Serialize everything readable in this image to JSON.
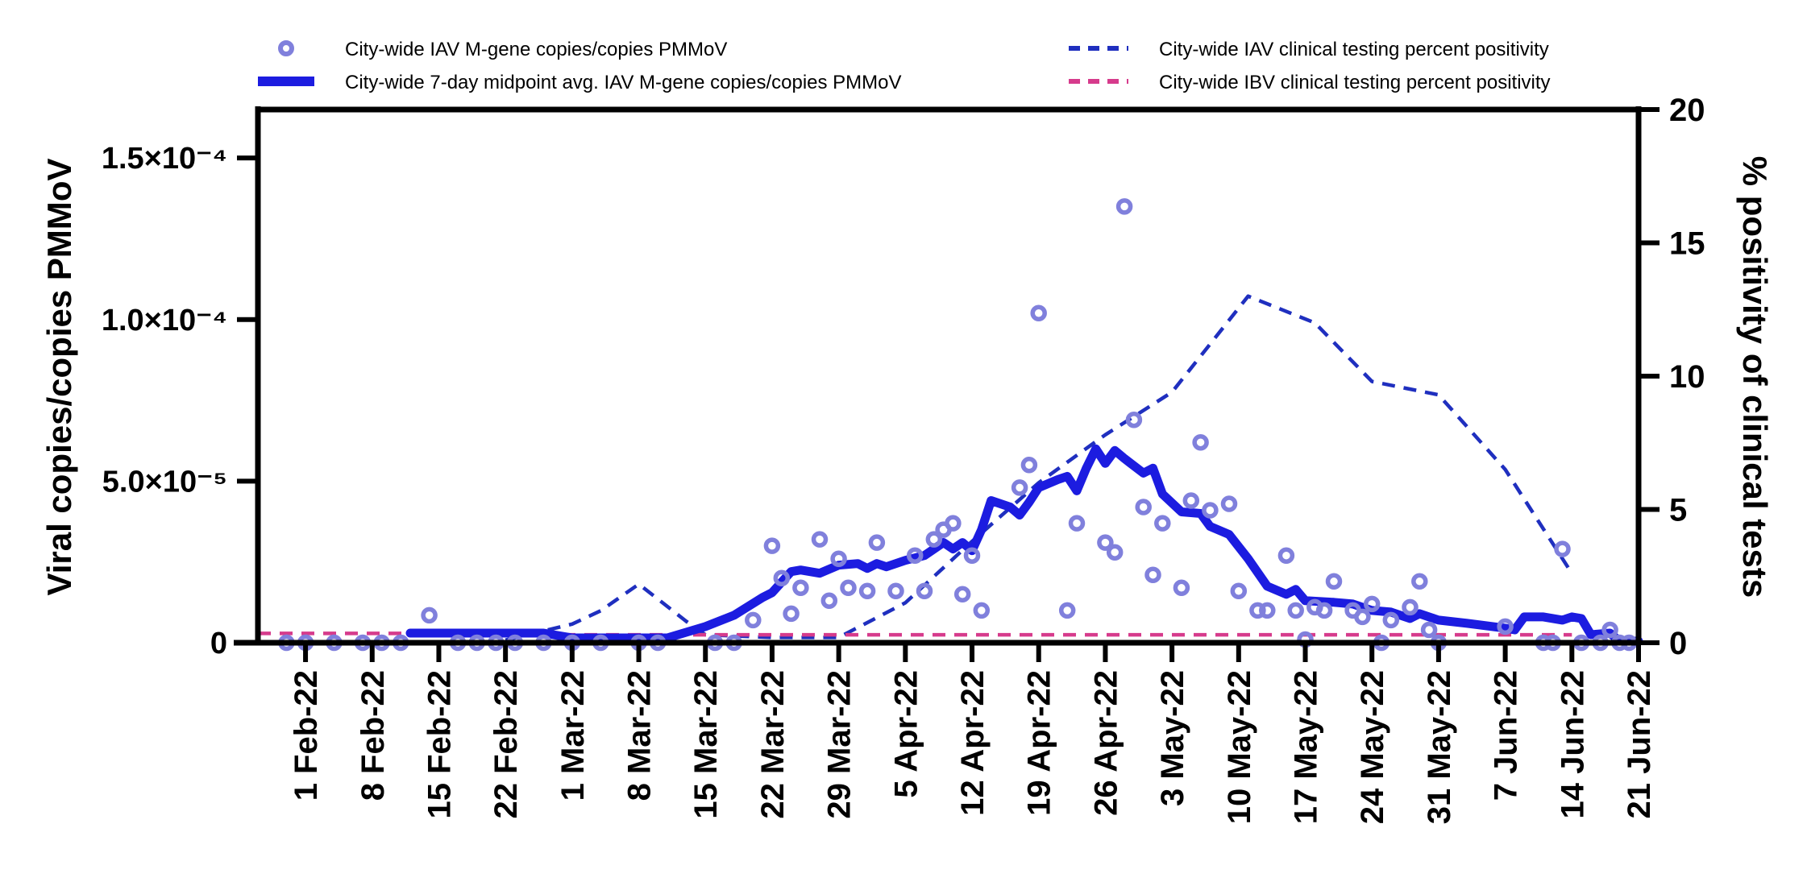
{
  "chart_data": {
    "type": "line",
    "y_left": {
      "label": "Viral copies/copies PMMoV",
      "range": [
        0,
        0.000165
      ],
      "ticks": [
        {
          "value": 0,
          "label": "0"
        },
        {
          "value": 5e-05,
          "label": "5.0×10⁻⁵"
        },
        {
          "value": 0.0001,
          "label": "1.0×10⁻⁴"
        },
        {
          "value": 0.00015,
          "label": "1.5×10⁻⁴"
        }
      ]
    },
    "y_right": {
      "label": "% positivity of clinical tests",
      "range": [
        0,
        20
      ],
      "ticks": [
        0,
        5,
        10,
        15,
        20
      ]
    },
    "x_axis": {
      "range": [
        "2022-01-27",
        "2022-06-21"
      ],
      "ticks": [
        {
          "date": "2022-02-01",
          "label": "1 Feb-22"
        },
        {
          "date": "2022-02-08",
          "label": "8 Feb-22"
        },
        {
          "date": "2022-02-15",
          "label": "15 Feb-22"
        },
        {
          "date": "2022-02-22",
          "label": "22 Feb-22"
        },
        {
          "date": "2022-03-01",
          "label": "1 Mar-22"
        },
        {
          "date": "2022-03-08",
          "label": "8 Mar-22"
        },
        {
          "date": "2022-03-15",
          "label": "15 Mar-22"
        },
        {
          "date": "2022-03-22",
          "label": "22 Mar-22"
        },
        {
          "date": "2022-03-29",
          "label": "29 Mar-22"
        },
        {
          "date": "2022-04-05",
          "label": "5 Apr-22"
        },
        {
          "date": "2022-04-12",
          "label": "12 Apr-22"
        },
        {
          "date": "2022-04-19",
          "label": "19 Apr-22"
        },
        {
          "date": "2022-04-26",
          "label": "26 Apr-22"
        },
        {
          "date": "2022-05-03",
          "label": "3 May-22"
        },
        {
          "date": "2022-05-10",
          "label": "10 May-22"
        },
        {
          "date": "2022-05-17",
          "label": "17 May-22"
        },
        {
          "date": "2022-05-24",
          "label": "24 May-22"
        },
        {
          "date": "2022-05-31",
          "label": "31 May-22"
        },
        {
          "date": "2022-06-07",
          "label": "7 Jun-22"
        },
        {
          "date": "2022-06-14",
          "label": "14 Jun-22"
        },
        {
          "date": "2022-06-21",
          "label": "21 Jun-22"
        }
      ]
    },
    "legend": [
      {
        "label": "City-wide IAV M-gene copies/copies PMMoV",
        "marker": "circle",
        "color": "#8080dc"
      },
      {
        "label": "City-wide 7-day midpoint avg. IAV M-gene copies/copies PMMoV",
        "marker": "thick-line",
        "color": "#1c1ce0"
      },
      {
        "label": "City-wide IAV clinical testing percent positivity",
        "marker": "dashed-line",
        "color": "#1f2fbf"
      },
      {
        "label": "City-wide IBV clinical testing percent positivity",
        "marker": "dashed-line",
        "color": "#d63b8c"
      }
    ],
    "series": [
      {
        "name": "City-wide IAV M-gene copies/copies PMMoV",
        "axis": "left",
        "style": "scatter",
        "color": "#8080dc",
        "points": [
          [
            "2022-01-30",
            0
          ],
          [
            "2022-02-01",
            0
          ],
          [
            "2022-02-04",
            0
          ],
          [
            "2022-02-07",
            0
          ],
          [
            "2022-02-09",
            0
          ],
          [
            "2022-02-11",
            0
          ],
          [
            "2022-02-14",
            8.5e-06
          ],
          [
            "2022-02-17",
            0
          ],
          [
            "2022-02-19",
            0
          ],
          [
            "2022-02-21",
            0
          ],
          [
            "2022-02-23",
            0
          ],
          [
            "2022-02-26",
            0
          ],
          [
            "2022-03-01",
            0
          ],
          [
            "2022-03-04",
            0
          ],
          [
            "2022-03-08",
            0
          ],
          [
            "2022-03-10",
            0
          ],
          [
            "2022-03-16",
            0
          ],
          [
            "2022-03-18",
            0
          ],
          [
            "2022-03-20",
            7e-06
          ],
          [
            "2022-03-22",
            3e-05
          ],
          [
            "2022-03-23",
            2e-05
          ],
          [
            "2022-03-24",
            9e-06
          ],
          [
            "2022-03-25",
            1.7e-05
          ],
          [
            "2022-03-27",
            3.2e-05
          ],
          [
            "2022-03-28",
            1.3e-05
          ],
          [
            "2022-03-29",
            2.6e-05
          ],
          [
            "2022-03-30",
            1.7e-05
          ],
          [
            "2022-04-01",
            1.6e-05
          ],
          [
            "2022-04-02",
            3.1e-05
          ],
          [
            "2022-04-04",
            1.6e-05
          ],
          [
            "2022-04-06",
            2.7e-05
          ],
          [
            "2022-04-07",
            1.6e-05
          ],
          [
            "2022-04-08",
            3.2e-05
          ],
          [
            "2022-04-09",
            3.5e-05
          ],
          [
            "2022-04-10",
            3.7e-05
          ],
          [
            "2022-04-11",
            1.5e-05
          ],
          [
            "2022-04-12",
            2.7e-05
          ],
          [
            "2022-04-13",
            1e-05
          ],
          [
            "2022-04-17",
            4.8e-05
          ],
          [
            "2022-04-18",
            5.5e-05
          ],
          [
            "2022-04-19",
            0.000102
          ],
          [
            "2022-04-22",
            1e-05
          ],
          [
            "2022-04-23",
            3.7e-05
          ],
          [
            "2022-04-26",
            3.1e-05
          ],
          [
            "2022-04-27",
            2.8e-05
          ],
          [
            "2022-04-28",
            0.000135
          ],
          [
            "2022-04-29",
            6.9e-05
          ],
          [
            "2022-04-30",
            4.2e-05
          ],
          [
            "2022-05-01",
            2.1e-05
          ],
          [
            "2022-05-02",
            3.7e-05
          ],
          [
            "2022-05-04",
            1.7e-05
          ],
          [
            "2022-05-05",
            4.4e-05
          ],
          [
            "2022-05-06",
            6.2e-05
          ],
          [
            "2022-05-07",
            4.1e-05
          ],
          [
            "2022-05-09",
            4.3e-05
          ],
          [
            "2022-05-10",
            1.6e-05
          ],
          [
            "2022-05-12",
            1e-05
          ],
          [
            "2022-05-13",
            1e-05
          ],
          [
            "2022-05-15",
            2.7e-05
          ],
          [
            "2022-05-16",
            1e-05
          ],
          [
            "2022-05-17",
            1e-06
          ],
          [
            "2022-05-18",
            1.1e-05
          ],
          [
            "2022-05-19",
            1e-05
          ],
          [
            "2022-05-20",
            1.9e-05
          ],
          [
            "2022-05-22",
            1e-05
          ],
          [
            "2022-05-23",
            8e-06
          ],
          [
            "2022-05-24",
            1.2e-05
          ],
          [
            "2022-05-25",
            0
          ],
          [
            "2022-05-26",
            7e-06
          ],
          [
            "2022-05-28",
            1.1e-05
          ],
          [
            "2022-05-29",
            1.9e-05
          ],
          [
            "2022-05-30",
            4e-06
          ],
          [
            "2022-05-31",
            0
          ],
          [
            "2022-06-07",
            5e-06
          ],
          [
            "2022-06-11",
            0
          ],
          [
            "2022-06-12",
            0
          ],
          [
            "2022-06-13",
            2.9e-05
          ],
          [
            "2022-06-15",
            0
          ],
          [
            "2022-06-17",
            0
          ],
          [
            "2022-06-18",
            4e-06
          ],
          [
            "2022-06-19",
            0
          ],
          [
            "2022-06-20",
            0
          ]
        ]
      },
      {
        "name": "City-wide 7-day midpoint avg. IAV M-gene copies/copies PMMoV",
        "axis": "left",
        "style": "thick-line",
        "color": "#1c1ce0",
        "points": [
          [
            "2022-02-12",
            3e-06
          ],
          [
            "2022-02-26",
            3e-06
          ],
          [
            "2022-03-01",
            1.5e-06
          ],
          [
            "2022-03-05",
            1.5e-06
          ],
          [
            "2022-03-11",
            1.5e-06
          ],
          [
            "2022-03-15",
            5e-06
          ],
          [
            "2022-03-18",
            8.5e-06
          ],
          [
            "2022-03-21",
            1.4e-05
          ],
          [
            "2022-03-22",
            1.55e-05
          ],
          [
            "2022-03-24",
            2.2e-05
          ],
          [
            "2022-03-25",
            2.25e-05
          ],
          [
            "2022-03-27",
            2.15e-05
          ],
          [
            "2022-03-29",
            2.4e-05
          ],
          [
            "2022-03-31",
            2.45e-05
          ],
          [
            "2022-04-01",
            2.3e-05
          ],
          [
            "2022-04-02",
            2.45e-05
          ],
          [
            "2022-04-03",
            2.35e-05
          ],
          [
            "2022-04-05",
            2.55e-05
          ],
          [
            "2022-04-07",
            2.7e-05
          ],
          [
            "2022-04-09",
            3.1e-05
          ],
          [
            "2022-04-10",
            2.9e-05
          ],
          [
            "2022-04-11",
            3.1e-05
          ],
          [
            "2022-04-12",
            2.85e-05
          ],
          [
            "2022-04-13",
            3.5e-05
          ],
          [
            "2022-04-14",
            4.4e-05
          ],
          [
            "2022-04-16",
            4.2e-05
          ],
          [
            "2022-04-17",
            3.95e-05
          ],
          [
            "2022-04-18",
            4.35e-05
          ],
          [
            "2022-04-19",
            4.8e-05
          ],
          [
            "2022-04-21",
            5.05e-05
          ],
          [
            "2022-04-22",
            5.15e-05
          ],
          [
            "2022-04-23",
            4.7e-05
          ],
          [
            "2022-04-24",
            5.4e-05
          ],
          [
            "2022-04-25",
            6e-05
          ],
          [
            "2022-04-26",
            5.55e-05
          ],
          [
            "2022-04-27",
            5.95e-05
          ],
          [
            "2022-04-28",
            5.7e-05
          ],
          [
            "2022-04-30",
            5.25e-05
          ],
          [
            "2022-05-01",
            5.4e-05
          ],
          [
            "2022-05-02",
            4.6e-05
          ],
          [
            "2022-05-04",
            4.05e-05
          ],
          [
            "2022-05-06",
            4e-05
          ],
          [
            "2022-05-07",
            3.6e-05
          ],
          [
            "2022-05-09",
            3.35e-05
          ],
          [
            "2022-05-11",
            2.6e-05
          ],
          [
            "2022-05-13",
            1.75e-05
          ],
          [
            "2022-05-15",
            1.5e-05
          ],
          [
            "2022-05-16",
            1.65e-05
          ],
          [
            "2022-05-17",
            1.3e-05
          ],
          [
            "2022-05-20",
            1.25e-05
          ],
          [
            "2022-05-22",
            1.2e-05
          ],
          [
            "2022-05-24",
            1e-05
          ],
          [
            "2022-05-26",
            9.5e-06
          ],
          [
            "2022-05-28",
            7.5e-06
          ],
          [
            "2022-05-29",
            9e-06
          ],
          [
            "2022-05-31",
            7e-06
          ],
          [
            "2022-06-03",
            6e-06
          ],
          [
            "2022-06-07",
            4.5e-06
          ],
          [
            "2022-06-08",
            4e-06
          ],
          [
            "2022-06-09",
            8e-06
          ],
          [
            "2022-06-11",
            8e-06
          ],
          [
            "2022-06-13",
            7e-06
          ],
          [
            "2022-06-14",
            8e-06
          ],
          [
            "2022-06-15",
            7.5e-06
          ],
          [
            "2022-06-16",
            2.5e-06
          ],
          [
            "2022-06-18",
            3e-06
          ],
          [
            "2022-06-19",
            5e-07
          ],
          [
            "2022-06-21",
            5e-07
          ]
        ]
      },
      {
        "name": "City-wide IAV clinical testing percent positivity",
        "axis": "right",
        "style": "dashed-line",
        "color": "#1f2fbf",
        "points": [
          [
            "2022-02-22",
            0.1
          ],
          [
            "2022-03-01",
            0.7
          ],
          [
            "2022-03-04",
            1.2
          ],
          [
            "2022-03-08",
            2.2
          ],
          [
            "2022-03-13",
            0.8
          ],
          [
            "2022-03-15",
            0.3
          ],
          [
            "2022-03-22",
            0.2
          ],
          [
            "2022-03-29",
            0.2
          ],
          [
            "2022-04-05",
            1.5
          ],
          [
            "2022-04-12",
            3.8
          ],
          [
            "2022-04-19",
            6.0
          ],
          [
            "2022-04-26",
            7.8
          ],
          [
            "2022-05-03",
            9.4
          ],
          [
            "2022-05-11",
            13.0
          ],
          [
            "2022-05-18",
            12.0
          ],
          [
            "2022-05-24",
            9.8
          ],
          [
            "2022-05-31",
            9.3
          ],
          [
            "2022-06-07",
            6.5
          ],
          [
            "2022-06-14",
            2.6
          ]
        ]
      },
      {
        "name": "City-wide IBV clinical testing percent positivity",
        "axis": "right",
        "style": "dashed-line",
        "color": "#d63b8c",
        "points": [
          [
            "2022-01-27",
            0.35
          ],
          [
            "2022-02-15",
            0.35
          ],
          [
            "2022-03-01",
            0.3
          ],
          [
            "2022-03-15",
            0.3
          ],
          [
            "2022-04-01",
            0.3
          ],
          [
            "2022-05-01",
            0.3
          ],
          [
            "2022-06-01",
            0.3
          ],
          [
            "2022-06-14",
            0.3
          ]
        ]
      }
    ],
    "grid": false
  }
}
